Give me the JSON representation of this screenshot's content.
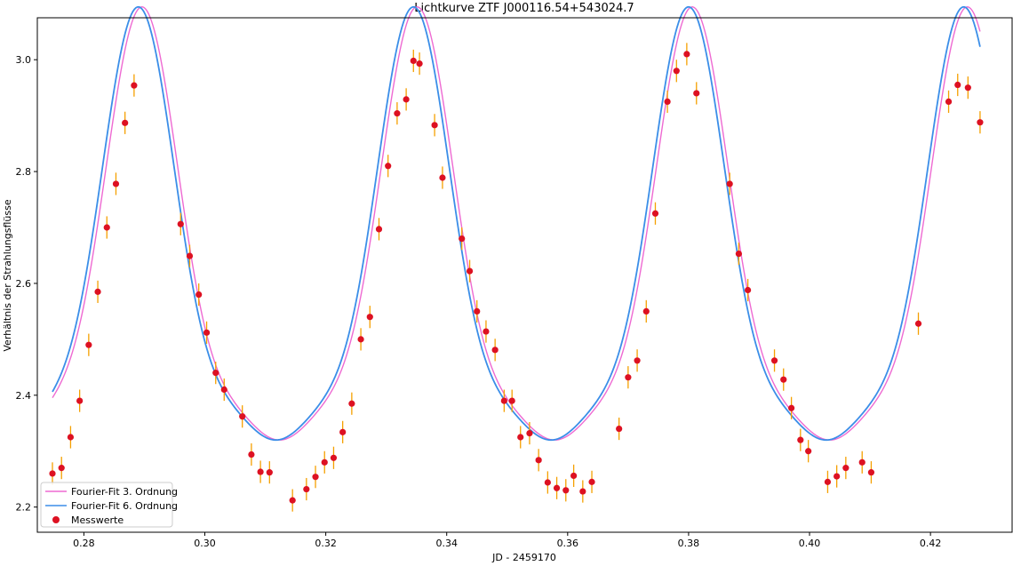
{
  "chart_data": {
    "type": "scatter",
    "title": "Lichtkurve ZTF J000116.54+543024.7",
    "xlabel": "JD - 2459170",
    "ylabel": "Verhältnis der Strahlungsflüsse",
    "xlim": [
      0.2723,
      0.4335
    ],
    "ylim": [
      2.155,
      3.075
    ],
    "xticks": [
      0.28,
      0.3,
      0.32,
      0.34,
      0.36,
      0.38,
      0.4,
      0.42
    ],
    "xtick_labels": [
      "0.28",
      "0.30",
      "0.32",
      "0.34",
      "0.36",
      "0.38",
      "0.40",
      "0.42"
    ],
    "yticks": [
      2.2,
      2.4,
      2.6,
      2.8,
      3.0
    ],
    "ytick_labels": [
      "2.2",
      "2.4",
      "2.6",
      "2.8",
      "3.0"
    ],
    "grid": false,
    "legend_position": "lower-left",
    "legend": [
      "Fourier-Fit 3. Ordnung",
      "Fourier-Fit 6. Ordnung",
      "Messwerte"
    ],
    "colors": {
      "fit3": "#ee6ad2",
      "fit6": "#3b8ee8",
      "points": "#dd1122",
      "errorbars": "#f5a000"
    },
    "fit_model": {
      "period": 0.0455,
      "phase_ref": 0.3345,
      "series": [
        {
          "name": "Fourier-Fit 3. Ordnung",
          "mean": 2.5944,
          "amplitudes": [
            0.3571,
            0.1128,
            0.0302
          ],
          "phase_shift": 0.0006
        },
        {
          "name": "Fourier-Fit 6. Ordnung",
          "mean": 2.5944,
          "amplitudes": [
            0.3571,
            0.1128,
            0.0302
          ],
          "phase_shift": 0.0
        }
      ]
    },
    "series": [
      {
        "name": "Messwerte",
        "x": [
          0.2748,
          0.2763,
          0.2778,
          0.2793,
          0.2808,
          0.2823,
          0.2838,
          0.2853,
          0.2868,
          0.2883,
          0.296,
          0.2975,
          0.299,
          0.3003,
          0.3018,
          0.3032,
          0.3062,
          0.3077,
          0.3092,
          0.3107,
          0.3145,
          0.3168,
          0.3183,
          0.3198,
          0.3213,
          0.3228,
          0.3243,
          0.3258,
          0.3273,
          0.3288,
          0.3303,
          0.3318,
          0.3333,
          0.3345,
          0.3355,
          0.338,
          0.3393,
          0.3425,
          0.3438,
          0.345,
          0.3465,
          0.348,
          0.3495,
          0.3508,
          0.3522,
          0.3537,
          0.3552,
          0.3567,
          0.3582,
          0.3597,
          0.361,
          0.3625,
          0.364,
          0.3685,
          0.37,
          0.3715,
          0.373,
          0.3745,
          0.3765,
          0.378,
          0.3797,
          0.3813,
          0.3868,
          0.3883,
          0.3898,
          0.3942,
          0.3957,
          0.397,
          0.3985,
          0.3998,
          0.403,
          0.4045,
          0.406,
          0.4087,
          0.4102,
          0.418,
          0.423,
          0.4245,
          0.4262,
          0.4282
        ],
        "y": [
          2.26,
          2.27,
          2.325,
          2.39,
          2.49,
          2.585,
          2.7,
          2.778,
          2.887,
          2.954,
          2.706,
          2.649,
          2.58,
          2.512,
          2.44,
          2.41,
          2.362,
          2.294,
          2.263,
          2.262,
          2.212,
          2.232,
          2.254,
          2.28,
          2.288,
          2.334,
          2.385,
          2.5,
          2.54,
          2.697,
          2.81,
          2.904,
          2.929,
          2.998,
          2.993,
          2.883,
          2.789,
          2.68,
          2.622,
          2.55,
          2.514,
          2.481,
          2.39,
          2.39,
          2.325,
          2.332,
          2.284,
          2.244,
          2.234,
          2.23,
          2.256,
          2.228,
          2.245,
          2.34,
          2.432,
          2.462,
          2.55,
          2.725,
          2.925,
          2.98,
          3.01,
          2.94,
          2.778,
          2.653,
          2.588,
          2.462,
          2.428,
          2.377,
          2.32,
          2.3,
          2.245,
          2.255,
          2.27,
          2.28,
          2.262,
          2.528,
          2.925,
          2.955,
          2.95,
          2.888
        ],
        "error": 0.02
      }
    ]
  }
}
